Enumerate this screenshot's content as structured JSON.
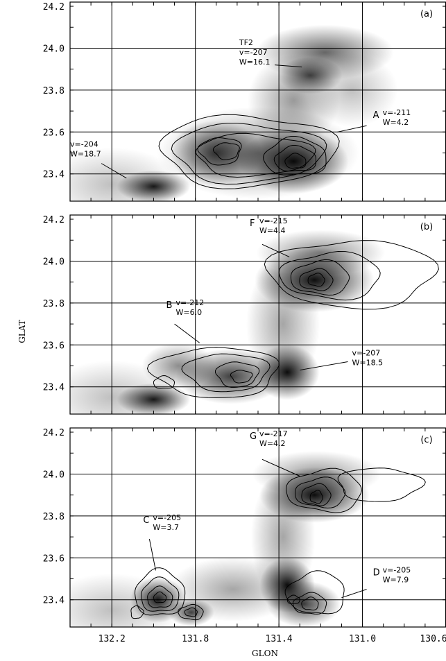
{
  "chart_data": {
    "type": "contour",
    "xlabel": "GLON",
    "ylabel": "GLAT",
    "xlim": [
      132.4,
      130.6
    ],
    "ylim": [
      23.27,
      24.22
    ],
    "x_ticks": [
      "132.2",
      "131.8",
      "131.4",
      "131.0",
      "130.6"
    ],
    "y_ticks": [
      "24.2",
      "24.0",
      "23.8",
      "23.6",
      "23.4"
    ],
    "grid_x": [
      132.2,
      131.8,
      131.4,
      131.0,
      130.6
    ],
    "grid_y": [
      24.0,
      23.8,
      23.6,
      23.4
    ],
    "panels": [
      {
        "label": "(a)",
        "blobs": [
          {
            "x": 131.33,
            "y": 23.46,
            "sx": 0.12,
            "sy": 0.07,
            "a": 0.95
          },
          {
            "x": 131.7,
            "y": 23.5,
            "sx": 0.1,
            "sy": 0.07,
            "a": 0.75
          },
          {
            "x": 132.0,
            "y": 23.34,
            "sx": 0.08,
            "sy": 0.035,
            "a": 0.9
          },
          {
            "x": 131.5,
            "y": 23.5,
            "sx": 0.22,
            "sy": 0.1,
            "a": 0.45
          },
          {
            "x": 131.18,
            "y": 23.98,
            "sx": 0.15,
            "sy": 0.06,
            "a": 0.6
          },
          {
            "x": 131.25,
            "y": 23.87,
            "sx": 0.07,
            "sy": 0.04,
            "a": 0.7
          },
          {
            "x": 131.33,
            "y": 23.75,
            "sx": 0.1,
            "sy": 0.1,
            "a": 0.4
          },
          {
            "x": 132.2,
            "y": 23.35,
            "sx": 0.15,
            "sy": 0.08,
            "a": 0.25
          },
          {
            "x": 131.05,
            "y": 23.8,
            "sx": 0.1,
            "sy": 0.08,
            "a": 0.25
          }
        ],
        "contours": [
          {
            "x": 131.65,
            "y": 23.51,
            "rx": 0.06,
            "ry": 0.04
          },
          {
            "x": 131.68,
            "y": 23.51,
            "rx": 0.1,
            "ry": 0.065
          },
          {
            "x": 131.32,
            "y": 23.46,
            "rx": 0.05,
            "ry": 0.035
          },
          {
            "x": 131.32,
            "y": 23.47,
            "rx": 0.1,
            "ry": 0.06
          },
          {
            "x": 131.32,
            "y": 23.48,
            "rx": 0.15,
            "ry": 0.09
          },
          {
            "x": 131.52,
            "y": 23.49,
            "rx": 0.28,
            "ry": 0.1
          },
          {
            "x": 131.55,
            "y": 23.5,
            "rx": 0.36,
            "ry": 0.14
          },
          {
            "x": 131.55,
            "y": 23.51,
            "rx": 0.42,
            "ry": 0.17
          }
        ],
        "annotations": [
          {
            "letter": "",
            "lines": [
              "TF2",
              "v=-207",
              "W=16.1"
            ],
            "tx": 131.59,
            "ty": 24.015,
            "lx1": 131.42,
            "ly1": 23.92,
            "lx2": 131.29,
            "ly2": 23.91
          },
          {
            "letter": "A",
            "lines": [
              "v=-211",
              "W=4.2"
            ],
            "tx": 130.95,
            "ty": 23.68,
            "lx1": 130.98,
            "ly1": 23.63,
            "lx2": 131.12,
            "ly2": 23.6
          },
          {
            "letter": "",
            "lines": [
              "v=-204",
              "W=18.7"
            ],
            "tx": 132.4,
            "ty": 23.53,
            "lx1": 132.25,
            "ly1": 23.45,
            "lx2": 132.13,
            "ly2": 23.38
          }
        ]
      },
      {
        "label": "(b)",
        "blobs": [
          {
            "x": 131.23,
            "y": 23.91,
            "sx": 0.13,
            "sy": 0.07,
            "a": 0.95
          },
          {
            "x": 131.2,
            "y": 24.04,
            "sx": 0.14,
            "sy": 0.05,
            "a": 0.45
          },
          {
            "x": 131.36,
            "y": 23.47,
            "sx": 0.07,
            "sy": 0.06,
            "a": 0.95
          },
          {
            "x": 131.63,
            "y": 23.45,
            "sx": 0.12,
            "sy": 0.06,
            "a": 0.75
          },
          {
            "x": 132.0,
            "y": 23.34,
            "sx": 0.08,
            "sy": 0.035,
            "a": 0.9
          },
          {
            "x": 131.88,
            "y": 23.5,
            "sx": 0.08,
            "sy": 0.05,
            "a": 0.45
          },
          {
            "x": 131.38,
            "y": 23.7,
            "sx": 0.08,
            "sy": 0.14,
            "a": 0.35
          },
          {
            "x": 132.2,
            "y": 23.35,
            "sx": 0.15,
            "sy": 0.08,
            "a": 0.25
          }
        ],
        "contours": [
          {
            "x": 131.22,
            "y": 23.91,
            "rx": 0.04,
            "ry": 0.03
          },
          {
            "x": 131.22,
            "y": 23.91,
            "rx": 0.08,
            "ry": 0.05
          },
          {
            "x": 131.2,
            "y": 23.92,
            "rx": 0.14,
            "ry": 0.08
          },
          {
            "x": 131.15,
            "y": 23.93,
            "rx": 0.24,
            "ry": 0.11
          },
          {
            "x": 131.05,
            "y": 23.94,
            "rx": 0.4,
            "ry": 0.16
          },
          {
            "x": 131.58,
            "y": 23.45,
            "rx": 0.05,
            "ry": 0.03
          },
          {
            "x": 131.6,
            "y": 23.46,
            "rx": 0.1,
            "ry": 0.06
          },
          {
            "x": 131.65,
            "y": 23.47,
            "rx": 0.2,
            "ry": 0.09
          },
          {
            "x": 131.7,
            "y": 23.47,
            "rx": 0.3,
            "ry": 0.12
          },
          {
            "x": 131.95,
            "y": 23.42,
            "rx": 0.05,
            "ry": 0.03
          }
        ],
        "annotations": [
          {
            "letter": "F",
            "lines": [
              "v=-215",
              "W=4.4"
            ],
            "tx": 131.54,
            "ty": 24.18,
            "lx1": 131.48,
            "ly1": 24.08,
            "lx2": 131.35,
            "ly2": 24.02
          },
          {
            "letter": "B",
            "lines": [
              "v=-212",
              "W=6.0"
            ],
            "tx": 131.94,
            "ty": 23.79,
            "lx1": 131.9,
            "ly1": 23.7,
            "lx2": 131.78,
            "ly2": 23.61
          },
          {
            "letter": "",
            "lines": [
              "v=-207",
              "W=18.5"
            ],
            "tx": 131.05,
            "ty": 23.55,
            "lx1": 131.07,
            "ly1": 23.52,
            "lx2": 131.3,
            "ly2": 23.48
          }
        ]
      },
      {
        "label": "(c)",
        "blobs": [
          {
            "x": 131.23,
            "y": 23.9,
            "sx": 0.12,
            "sy": 0.06,
            "a": 0.95
          },
          {
            "x": 131.22,
            "y": 24.0,
            "sx": 0.14,
            "sy": 0.05,
            "a": 0.4
          },
          {
            "x": 131.36,
            "y": 23.47,
            "sx": 0.06,
            "sy": 0.06,
            "a": 0.95
          },
          {
            "x": 131.28,
            "y": 23.38,
            "sx": 0.08,
            "sy": 0.05,
            "a": 0.75
          },
          {
            "x": 131.98,
            "y": 23.4,
            "sx": 0.06,
            "sy": 0.05,
            "a": 0.9
          },
          {
            "x": 131.82,
            "y": 23.34,
            "sx": 0.05,
            "sy": 0.03,
            "a": 0.75
          },
          {
            "x": 131.62,
            "y": 23.45,
            "sx": 0.14,
            "sy": 0.07,
            "a": 0.35
          },
          {
            "x": 131.38,
            "y": 23.7,
            "sx": 0.07,
            "sy": 0.14,
            "a": 0.35
          },
          {
            "x": 132.2,
            "y": 23.35,
            "sx": 0.15,
            "sy": 0.08,
            "a": 0.25
          }
        ],
        "contours": [
          {
            "x": 131.22,
            "y": 23.89,
            "rx": 0.03,
            "ry": 0.03
          },
          {
            "x": 131.22,
            "y": 23.9,
            "rx": 0.07,
            "ry": 0.05
          },
          {
            "x": 131.2,
            "y": 23.91,
            "rx": 0.12,
            "ry": 0.07
          },
          {
            "x": 131.18,
            "y": 23.92,
            "rx": 0.18,
            "ry": 0.1
          },
          {
            "x": 130.92,
            "y": 23.95,
            "rx": 0.2,
            "ry": 0.08
          },
          {
            "x": 131.97,
            "y": 23.41,
            "rx": 0.03,
            "ry": 0.025
          },
          {
            "x": 131.97,
            "y": 23.41,
            "rx": 0.06,
            "ry": 0.05
          },
          {
            "x": 131.97,
            "y": 23.42,
            "rx": 0.09,
            "ry": 0.08
          },
          {
            "x": 131.97,
            "y": 23.43,
            "rx": 0.12,
            "ry": 0.11
          },
          {
            "x": 131.82,
            "y": 23.34,
            "rx": 0.03,
            "ry": 0.02
          },
          {
            "x": 131.82,
            "y": 23.34,
            "rx": 0.06,
            "ry": 0.035
          },
          {
            "x": 132.08,
            "y": 23.34,
            "rx": 0.03,
            "ry": 0.03
          },
          {
            "x": 131.25,
            "y": 23.38,
            "rx": 0.04,
            "ry": 0.03
          },
          {
            "x": 131.25,
            "y": 23.38,
            "rx": 0.08,
            "ry": 0.05
          },
          {
            "x": 131.22,
            "y": 23.43,
            "rx": 0.14,
            "ry": 0.1
          },
          {
            "x": 131.33,
            "y": 23.4,
            "rx": 0.03,
            "ry": 0.02
          }
        ],
        "annotations": [
          {
            "letter": "G",
            "lines": [
              "v=-217",
              "W=4.2"
            ],
            "tx": 131.54,
            "ty": 24.18,
            "lx1": 131.48,
            "ly1": 24.07,
            "lx2": 131.3,
            "ly2": 23.99
          },
          {
            "letter": "C",
            "lines": [
              "v=-205",
              "W=3.7"
            ],
            "tx": 132.05,
            "ty": 23.78,
            "lx1": 132.02,
            "ly1": 23.69,
            "lx2": 131.99,
            "ly2": 23.54
          },
          {
            "letter": "D",
            "lines": [
              "v=-205",
              "W=7.9"
            ],
            "tx": 130.95,
            "ty": 23.53,
            "lx1": 130.98,
            "ly1": 23.45,
            "lx2": 131.1,
            "ly2": 23.41
          }
        ]
      }
    ]
  }
}
